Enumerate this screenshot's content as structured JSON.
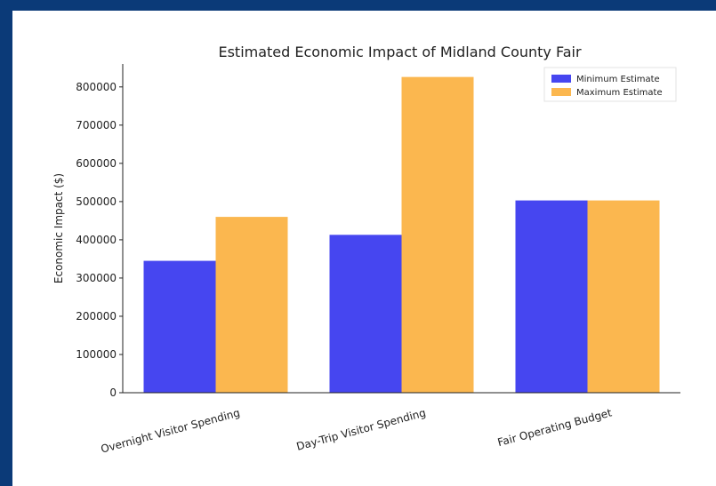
{
  "chart_data": {
    "type": "bar",
    "title": "Estimated Economic Impact of Midland County Fair",
    "xlabel": "",
    "ylabel": "Economic Impact ($)",
    "categories": [
      "Overnight Visitor Spending",
      "Day-Trip Visitor Spending",
      "Fair Operating Budget"
    ],
    "series": [
      {
        "name": "Minimum Estimate",
        "values": [
          345000,
          413000,
          503000
        ],
        "color": "#4646f0"
      },
      {
        "name": "Maximum Estimate",
        "values": [
          460000,
          826000,
          503000
        ],
        "color": "#fbb74f"
      }
    ],
    "ylim": [
      0,
      860000
    ],
    "yticks": [
      0,
      100000,
      200000,
      300000,
      400000,
      500000,
      600000,
      700000,
      800000
    ],
    "ytick_labels": [
      "0",
      "100000",
      "200000",
      "300000",
      "400000",
      "500000",
      "600000",
      "700000",
      "800000"
    ],
    "legend_position": "top-right",
    "grid": false
  }
}
